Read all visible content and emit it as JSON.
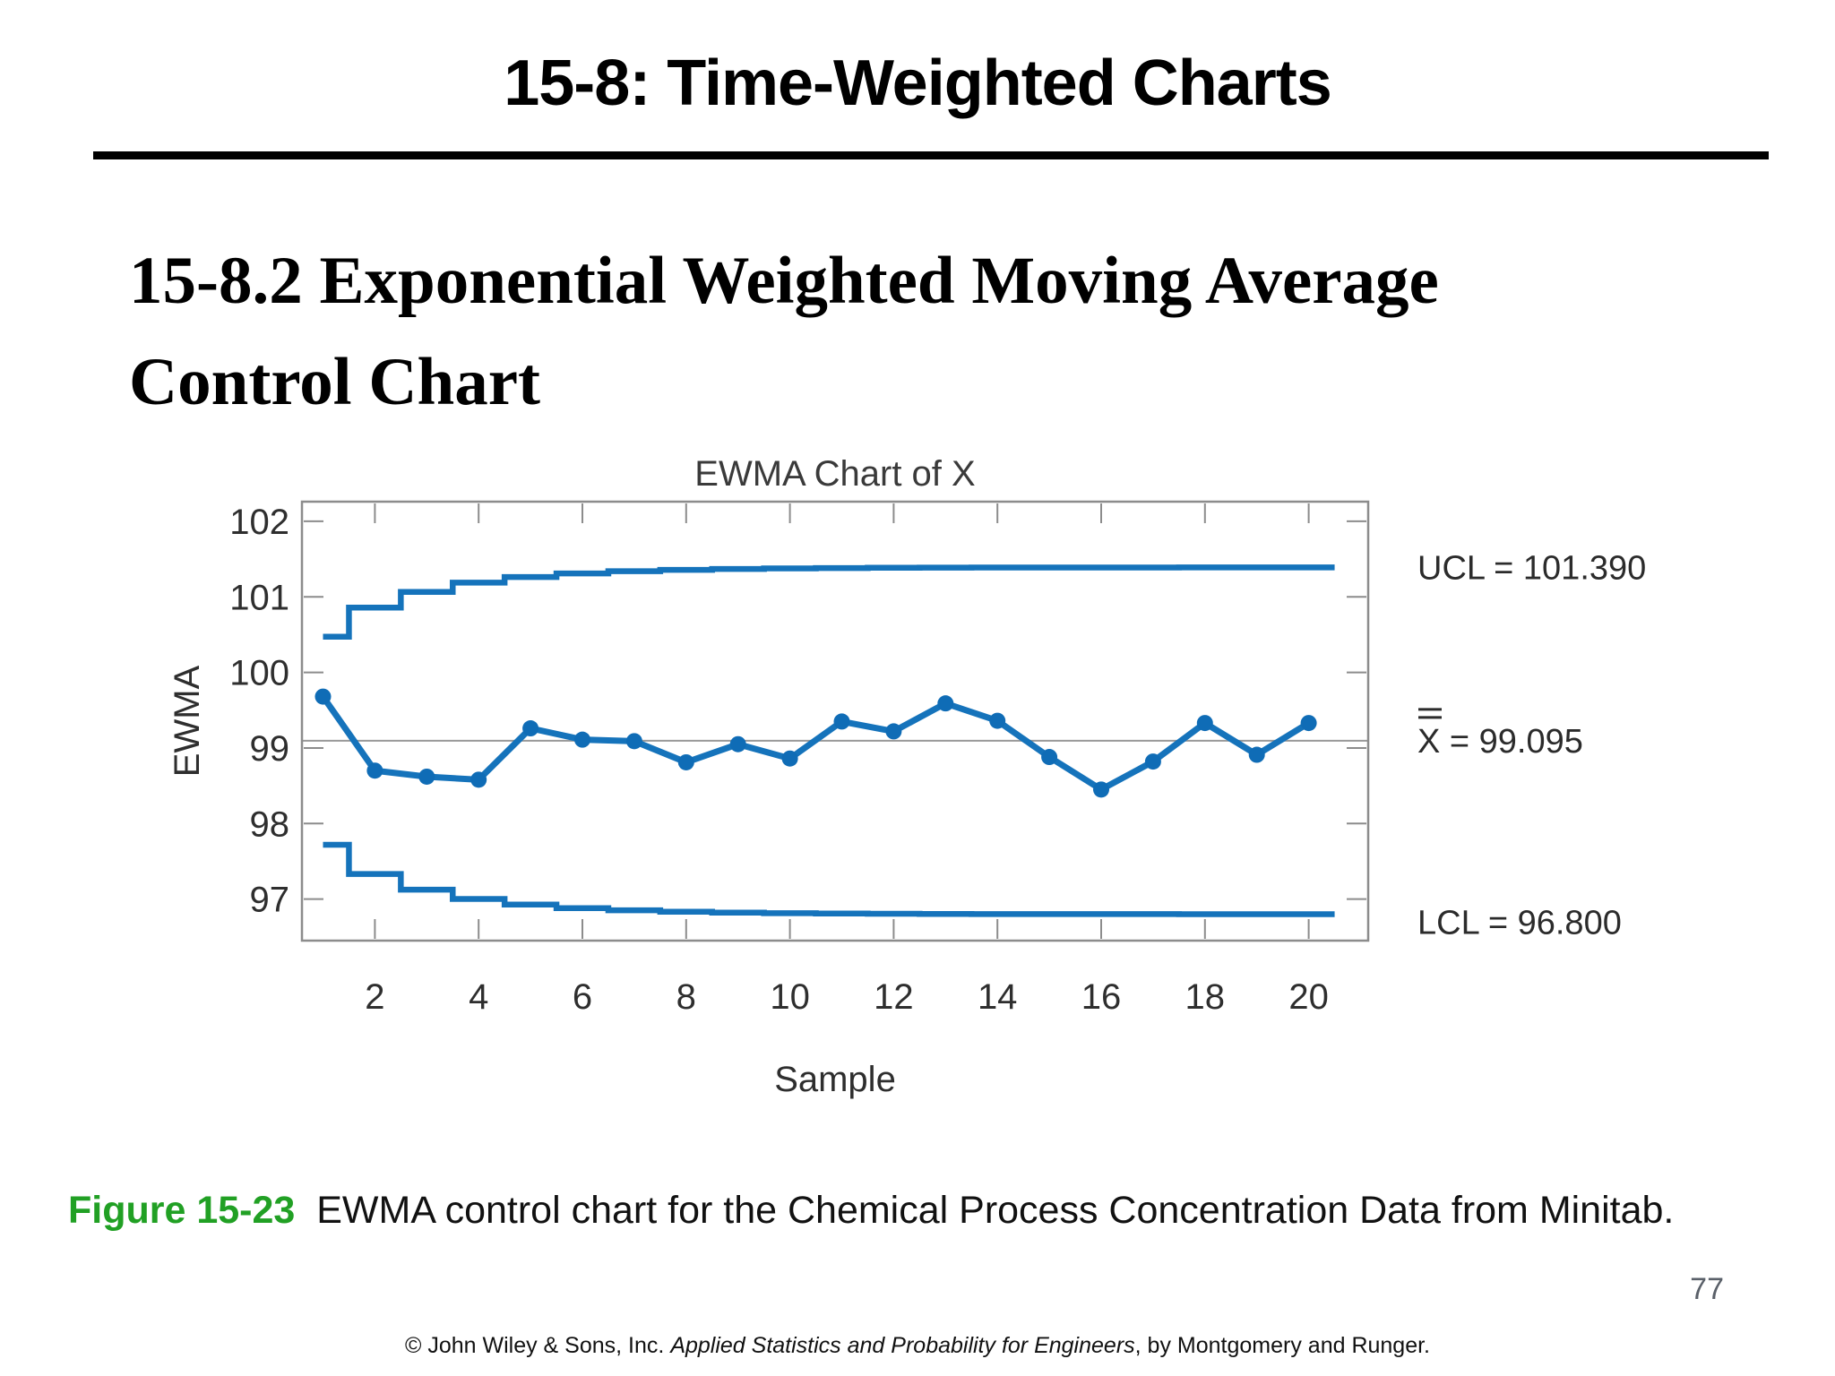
{
  "slide": {
    "title": "15-8: Time-Weighted Charts",
    "section_heading_line1": "15-8.2 Exponential Weighted Moving Average",
    "section_heading_line2": "Control Chart",
    "page_number": "77",
    "caption": {
      "label": "Figure 15-23",
      "text": "EWMA control chart for the Chemical Process Concentration Data from Minitab.",
      "label_color": "#21a024"
    },
    "footer": {
      "prefix": "© John Wiley & Sons, Inc.  ",
      "book_title": "Applied Statistics and Probability for Engineers",
      "suffix": ", by Montgomery and Runger."
    }
  },
  "chart_data": {
    "type": "line",
    "title": "EWMA Chart of X",
    "xlabel": "Sample",
    "ylabel": "EWMA",
    "x_ticks": [
      2,
      4,
      6,
      8,
      10,
      12,
      14,
      16,
      18,
      20
    ],
    "y_ticks": [
      97,
      98,
      99,
      100,
      101,
      102
    ],
    "xlim": [
      0.6,
      21.1
    ],
    "ylim": [
      96.45,
      102.26
    ],
    "grid": false,
    "legend": false,
    "center_line_value": 99.095,
    "ucl_asymptote": 101.39,
    "lcl_asymptote": 96.8,
    "labels": {
      "ucl": "UCL = 101.390",
      "center_symbol": "X",
      "center_rest": " = 99.095",
      "lcl": "LCL = 96.800"
    },
    "samples": [
      1,
      2,
      3,
      4,
      5,
      6,
      7,
      8,
      9,
      10,
      11,
      12,
      13,
      14,
      15,
      16,
      17,
      18,
      19,
      20
    ],
    "series": [
      {
        "name": "EWMA",
        "values": [
          99.68,
          98.7,
          98.62,
          98.58,
          99.26,
          99.11,
          99.09,
          98.81,
          99.05,
          98.86,
          99.35,
          99.22,
          99.59,
          99.36,
          98.88,
          98.45,
          98.82,
          99.33,
          98.91,
          99.33
        ]
      },
      {
        "name": "UCL",
        "values": [
          100.472,
          100.858,
          101.066,
          101.189,
          101.263,
          101.31,
          101.339,
          101.358,
          101.369,
          101.377,
          101.381,
          101.385,
          101.387,
          101.388,
          101.389,
          101.389,
          101.389,
          101.39,
          101.39,
          101.39
        ]
      },
      {
        "name": "LCL",
        "values": [
          97.718,
          97.332,
          97.124,
          97.001,
          96.927,
          96.88,
          96.851,
          96.833,
          96.821,
          96.813,
          96.809,
          96.805,
          96.803,
          96.802,
          96.801,
          96.801,
          96.801,
          96.8,
          96.8,
          96.8
        ]
      }
    ],
    "colors": {
      "series_line": "#1573bb",
      "marker": "#0f6cb6",
      "center_line": "#999999",
      "axis": "#8c8c8c",
      "tick_label": "#2e2e2e",
      "annotation_text": "#2b2b2b",
      "chart_title": "#3a3a3a"
    }
  }
}
